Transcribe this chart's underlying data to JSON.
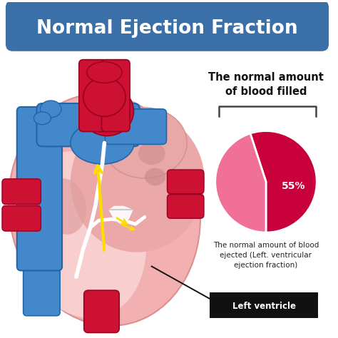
{
  "title": "Normal Ejection Fraction",
  "title_bg_color": "#3a6fa8",
  "title_text_color": "#ffffff",
  "bg_color": "#ffffff",
  "pie_colors": [
    "#c8003c",
    "#f07098"
  ],
  "pie_label": "55%",
  "pie_label_color": "#ffffff",
  "pie_title": "The normal amount\nof blood filled",
  "pie_title_color": "#111111",
  "pie_subtitle": "The normal amount of blood\nejected (Left. ventricular\nejection fraction)",
  "pie_subtitle_color": "#222222",
  "left_ventricle_label": "Left ventricle",
  "left_ventricle_bg": "#111111",
  "left_ventricle_text_color": "#ffffff",
  "bracket_color": "#444444",
  "heart_outer": "#f0b8b8",
  "heart_inner": "#e8a0a0",
  "heart_lv": "#f5c8c8",
  "heart_rv": "#dda0a0",
  "blue_vessel": "#4488cc",
  "blue_vessel_dark": "#2266aa",
  "red_vessel": "#cc1133",
  "red_vessel_dark": "#990022",
  "white_line": "#ffffff",
  "yellow_arrow": "#ffdd00"
}
